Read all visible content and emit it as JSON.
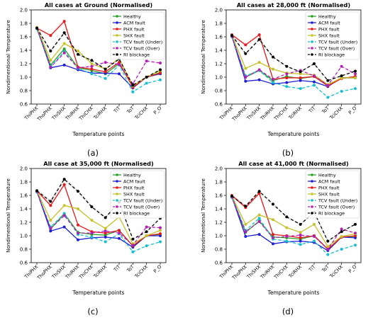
{
  "figure": {
    "panel_labels": [
      "(a)",
      "(b)",
      "(c)",
      "(d)"
    ]
  },
  "series_styles": [
    {
      "name": "Healthy",
      "color": "#2ca02c",
      "dash": "",
      "marker": "circle"
    },
    {
      "name": "ACM fault",
      "color": "#1f1fd6",
      "dash": "",
      "marker": "circle"
    },
    {
      "name": "PHX fault",
      "color": "#e41a1c",
      "dash": "",
      "marker": "circle"
    },
    {
      "name": "SHX fault",
      "color": "#c7c12a",
      "dash": "",
      "marker": "circle"
    },
    {
      "name": "TCV fault (Under)",
      "color": "#17becf",
      "dash": "4,3",
      "marker": "circle"
    },
    {
      "name": "TCV fault (Over)",
      "color": "#b21fb2",
      "dash": "4,3",
      "marker": "circle"
    },
    {
      "name": "RI blockage",
      "color": "#000000",
      "dash": "4,3",
      "marker": "circle"
    }
  ],
  "chart_data": [
    {
      "type": "line",
      "title": "All cases at Ground (Normalised)",
      "xlabel": "Temperature points",
      "ylabel": "Nondimentional Temperature",
      "categories": [
        "ThiPHX",
        "ThoPHX",
        "ThiSHX",
        "ThiRHX",
        "ThiCHX",
        "TciRHX",
        "TiT",
        "ToT",
        "TciCHX",
        "P_O"
      ],
      "ylim": [
        0.6,
        2.0
      ],
      "yticks": [
        0.6,
        0.8,
        1.0,
        1.2,
        1.4,
        1.6,
        1.8,
        2.0
      ],
      "legend": "top-right",
      "grid": false,
      "series": [
        {
          "name": "Healthy",
          "values": [
            1.73,
            1.18,
            1.42,
            1.14,
            1.1,
            1.05,
            1.2,
            0.86,
            1.0,
            1.07
          ]
        },
        {
          "name": "ACM fault",
          "values": [
            1.73,
            1.14,
            1.18,
            1.11,
            1.06,
            1.06,
            1.05,
            0.84,
            1.0,
            1.05
          ]
        },
        {
          "name": "PHX fault",
          "values": [
            1.73,
            1.62,
            1.83,
            1.15,
            1.12,
            1.08,
            1.22,
            0.85,
            1.0,
            1.06
          ]
        },
        {
          "name": "SHX fault",
          "values": [
            1.74,
            1.25,
            1.5,
            1.39,
            1.2,
            1.12,
            1.28,
            0.87,
            1.0,
            1.1
          ]
        },
        {
          "name": "TCV fault (Under)",
          "values": [
            1.72,
            1.16,
            1.38,
            1.13,
            1.05,
            0.98,
            1.18,
            0.78,
            0.91,
            0.96
          ]
        },
        {
          "name": "TCV fault (Over)",
          "values": [
            1.73,
            1.15,
            1.36,
            1.14,
            1.16,
            1.22,
            1.19,
            0.9,
            1.24,
            1.21
          ]
        },
        {
          "name": "RI blockage",
          "values": [
            1.73,
            1.39,
            1.66,
            1.34,
            1.25,
            1.12,
            1.27,
            0.88,
            1.0,
            1.11
          ]
        }
      ]
    },
    {
      "type": "line",
      "title": "All cases at 28,000 ft (Normalised)",
      "xlabel": "Temperature points",
      "ylabel": "Nondimentional Temperature",
      "categories": [
        "ThiPHX",
        "ThoPHX",
        "ThiSHX",
        "ThiRHX",
        "ThiCHX",
        "TciRHX",
        "TiT",
        "ToT",
        "TciCHX",
        "P_O"
      ],
      "ylim": [
        0.6,
        2.0
      ],
      "yticks": [
        0.6,
        0.8,
        1.0,
        1.2,
        1.4,
        1.6,
        1.8,
        2.0
      ],
      "legend": "top-right",
      "grid": false,
      "series": [
        {
          "name": "Healthy",
          "values": [
            1.61,
            1.0,
            1.1,
            0.95,
            1.01,
            0.98,
            1.01,
            0.88,
            0.99,
            0.99
          ]
        },
        {
          "name": "ACM fault",
          "values": [
            1.61,
            0.94,
            0.96,
            0.9,
            0.92,
            0.95,
            0.93,
            0.86,
            0.99,
            0.99
          ]
        },
        {
          "name": "PHX fault",
          "values": [
            1.63,
            1.48,
            1.63,
            0.97,
            0.99,
            0.99,
            1.01,
            0.87,
            0.98,
            1.01
          ]
        },
        {
          "name": "SHX fault",
          "values": [
            1.62,
            1.13,
            1.22,
            1.12,
            1.06,
            1.05,
            1.03,
            0.89,
            0.99,
            0.99
          ]
        },
        {
          "name": "TCV fault (Under)",
          "values": [
            1.6,
            1.02,
            1.1,
            0.92,
            0.86,
            0.83,
            0.88,
            0.7,
            0.79,
            0.83
          ]
        },
        {
          "name": "TCV fault (Over)",
          "values": [
            1.61,
            1.0,
            1.11,
            0.97,
            1.05,
            1.1,
            1.02,
            0.88,
            1.16,
            1.05
          ]
        },
        {
          "name": "RI blockage",
          "values": [
            1.62,
            1.35,
            1.56,
            1.3,
            1.16,
            1.08,
            1.2,
            0.95,
            1.02,
            1.09
          ]
        }
      ]
    },
    {
      "type": "line",
      "title": "All case at 35,000 ft (Normalised)",
      "xlabel": "Temperature points",
      "ylabel": "Nondimentional Temperature",
      "categories": [
        "ThiPHX",
        "ThoPHX",
        "ThiSHX",
        "ThiRHX",
        "ThiCHX",
        "TciRHX",
        "TiT",
        "ToT",
        "TciCHX",
        "P_O"
      ],
      "ylim": [
        0.6,
        2.0
      ],
      "yticks": [
        0.6,
        0.8,
        1.0,
        1.2,
        1.4,
        1.6,
        1.8,
        2.0
      ],
      "legend": "top-right",
      "grid": false,
      "series": [
        {
          "name": "Healthy",
          "values": [
            1.66,
            1.1,
            1.33,
            1.05,
            1.02,
            1.01,
            1.08,
            0.85,
            1.0,
            1.02
          ]
        },
        {
          "name": "ACM fault",
          "values": [
            1.66,
            1.07,
            1.13,
            0.94,
            0.97,
            0.98,
            0.96,
            0.83,
            1.0,
            1.0
          ]
        },
        {
          "name": "PHX fault",
          "values": [
            1.67,
            1.45,
            1.76,
            1.16,
            1.06,
            1.04,
            1.08,
            0.85,
            1.0,
            1.03
          ]
        },
        {
          "name": "SHX fault",
          "values": [
            1.67,
            1.23,
            1.45,
            1.4,
            1.23,
            1.11,
            1.28,
            0.88,
            1.0,
            1.08
          ]
        },
        {
          "name": "TCV fault (Under)",
          "values": [
            1.65,
            1.13,
            1.33,
            1.02,
            0.98,
            0.91,
            1.03,
            0.76,
            0.85,
            0.91
          ]
        },
        {
          "name": "TCV fault (Over)",
          "values": [
            1.66,
            1.11,
            1.3,
            1.04,
            1.04,
            1.07,
            1.04,
            0.86,
            1.13,
            1.12
          ]
        },
        {
          "name": "RI blockage",
          "values": [
            1.67,
            1.51,
            1.84,
            1.66,
            1.43,
            1.27,
            1.5,
            0.95,
            1.06,
            1.26
          ]
        }
      ]
    },
    {
      "type": "line",
      "title": "All case at 41,000 ft (Normalised)",
      "xlabel": "Temperature points",
      "ylabel": "Nondimentional Temperature",
      "categories": [
        "ThiPHX",
        "ThoPHX",
        "ThiSHX",
        "ThiRHX",
        "ThiCHX",
        "TciRHX",
        "TiT",
        "ToT",
        "TciCHX",
        "P_O"
      ],
      "ylim": [
        0.6,
        2.0
      ],
      "yticks": [
        0.6,
        0.8,
        1.0,
        1.2,
        1.4,
        1.6,
        1.8,
        2.0
      ],
      "legend": "top-right",
      "grid": false,
      "series": [
        {
          "name": "Healthy",
          "values": [
            1.58,
            1.05,
            1.22,
            0.98,
            0.97,
            0.95,
            1.0,
            0.8,
            0.98,
            0.99
          ]
        },
        {
          "name": "ACM fault",
          "values": [
            1.58,
            0.99,
            1.02,
            0.88,
            0.91,
            0.92,
            0.9,
            0.78,
            0.98,
            0.97
          ]
        },
        {
          "name": "PHX fault",
          "values": [
            1.6,
            1.42,
            1.63,
            1.02,
            1.0,
            0.97,
            1.0,
            0.8,
            0.98,
            1.0
          ]
        },
        {
          "name": "SHX fault",
          "values": [
            1.59,
            1.17,
            1.31,
            1.24,
            1.12,
            1.05,
            1.17,
            0.84,
            0.99,
            1.03
          ]
        },
        {
          "name": "TCV fault (Under)",
          "values": [
            1.57,
            1.08,
            1.26,
            0.95,
            0.92,
            0.87,
            0.92,
            0.72,
            0.8,
            0.86
          ]
        },
        {
          "name": "TCV fault (Over)",
          "values": [
            1.58,
            1.06,
            1.21,
            0.97,
            0.99,
            1.01,
            0.99,
            0.8,
            1.1,
            1.04
          ]
        },
        {
          "name": "RI blockage",
          "values": [
            1.59,
            1.44,
            1.66,
            1.47,
            1.28,
            1.17,
            1.35,
            0.92,
            1.06,
            1.17
          ]
        }
      ]
    }
  ]
}
